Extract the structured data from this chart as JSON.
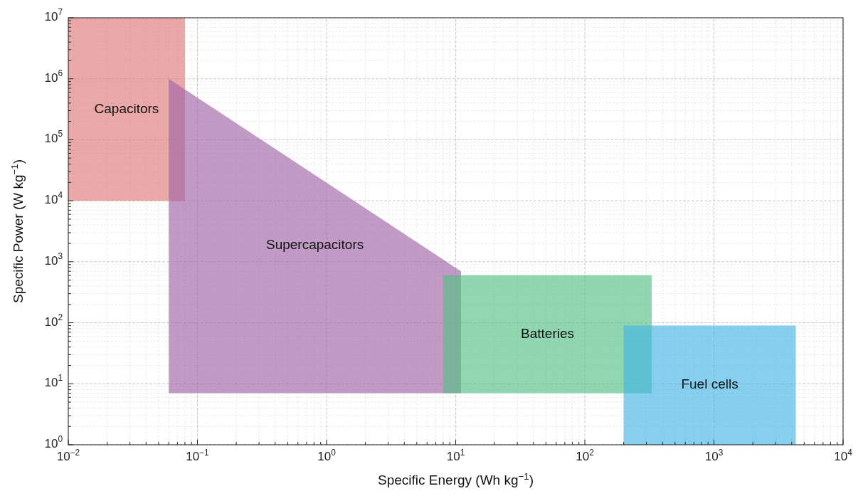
{
  "chart_data": {
    "type": "area",
    "xlabel": "Specific Energy (Wh kg$^{−1}$)",
    "ylabel": "Specific Power (W kg$^{−1}$)",
    "log": "xy",
    "grid": true,
    "xlim": [
      0.01,
      10000
    ],
    "ylim": [
      1,
      10000000
    ],
    "xticks": [
      {
        "value": 0.01,
        "label": "10$^{−2}$"
      },
      {
        "value": 0.1,
        "label": "10$^{−1}$"
      },
      {
        "value": 1,
        "label": "10$^{0}$"
      },
      {
        "value": 10,
        "label": "10$^{1}$"
      },
      {
        "value": 100,
        "label": "10$^{2}$"
      },
      {
        "value": 1000,
        "label": "10$^{3}$"
      },
      {
        "value": 10000,
        "label": "10$^{4}$"
      }
    ],
    "yticks": [
      {
        "value": 1,
        "label": "10$^{0}$"
      },
      {
        "value": 10,
        "label": "10$^{1}$"
      },
      {
        "value": 100,
        "label": "10$^{2}$"
      },
      {
        "value": 1000,
        "label": "10$^{3}$"
      },
      {
        "value": 10000,
        "label": "10$^{4}$"
      },
      {
        "value": 100000,
        "label": "10$^{5}$"
      },
      {
        "value": 1000000,
        "label": "10$^{6}$"
      },
      {
        "value": 10000000,
        "label": "10$^{7}$"
      }
    ],
    "series": [
      {
        "name": "Capacitors",
        "color": "#e07a7a",
        "x": [
          0.01,
          0.08,
          0.08,
          0.01
        ],
        "values": [
          10000000,
          10000000,
          10000,
          10000
        ]
      },
      {
        "name": "Supercapacitors",
        "color": "#a066a6",
        "x": [
          0.06,
          11,
          11,
          0.06
        ],
        "values": [
          1000000,
          700,
          7,
          7
        ]
      },
      {
        "name": "Batteries",
        "color": "#55c085",
        "x": [
          8,
          330,
          330,
          8
        ],
        "values": [
          600,
          600,
          7,
          7
        ]
      },
      {
        "name": "Fuel cells",
        "color": "#45b5e5",
        "x": [
          200,
          4300,
          4300,
          200
        ],
        "values": [
          90,
          90,
          1,
          1
        ]
      }
    ]
  }
}
